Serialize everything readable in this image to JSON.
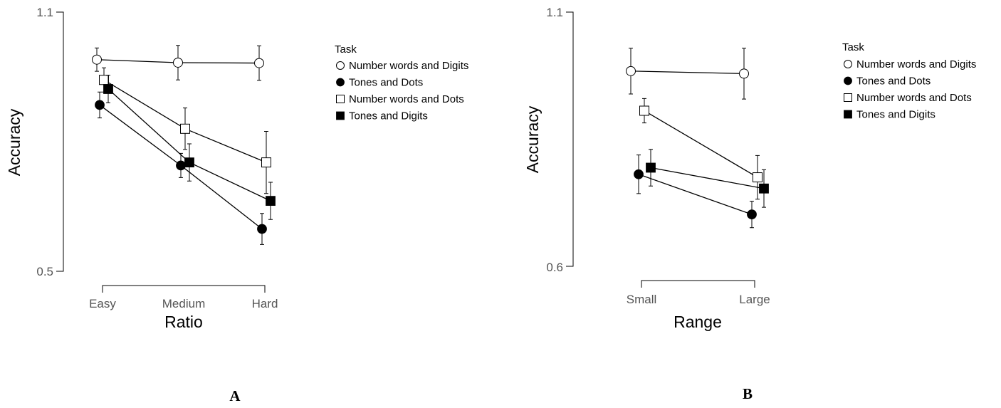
{
  "chart_data": [
    {
      "type": "line",
      "panel_label": "A",
      "xlabel": "Ratio",
      "ylabel": "Accuracy",
      "categories": [
        "Easy",
        "Medium",
        "Hard"
      ],
      "ylim": [
        0.5,
        1.1
      ],
      "y_ticks": [
        "0.5",
        "1.1"
      ],
      "legend": {
        "title": "Task",
        "placement": "right"
      },
      "series": [
        {
          "name": "Number words and Digits",
          "marker": "circle-open",
          "values": [
            0.99,
            0.983,
            0.982
          ],
          "err": [
            0.027,
            0.04,
            0.04
          ]
        },
        {
          "name": "Tones and Dots",
          "marker": "circle-filled",
          "values": [
            0.885,
            0.745,
            0.598
          ],
          "err": [
            0.03,
            0.028,
            0.036
          ]
        },
        {
          "name": "Number words and Dots",
          "marker": "square-open",
          "values": [
            0.943,
            0.83,
            0.752
          ],
          "err": [
            0.028,
            0.048,
            0.072
          ]
        },
        {
          "name": "Tones and Digits",
          "marker": "square-filled",
          "values": [
            0.922,
            0.752,
            0.663
          ],
          "err": [
            0.032,
            0.043,
            0.043
          ]
        }
      ]
    },
    {
      "type": "line",
      "panel_label": "B",
      "xlabel": "Range",
      "ylabel": "Accuracy",
      "categories": [
        "Small",
        "Large"
      ],
      "ylim": [
        0.6,
        1.1
      ],
      "y_ticks": [
        "0.6",
        "1.1"
      ],
      "legend": {
        "title": "Task",
        "placement": "right"
      },
      "series": [
        {
          "name": "Number words and Digits",
          "marker": "circle-open",
          "values": [
            0.984,
            0.979
          ],
          "err": [
            0.045,
            0.05
          ]
        },
        {
          "name": "Tones and Dots",
          "marker": "circle-filled",
          "values": [
            0.781,
            0.702
          ],
          "err": [
            0.038,
            0.026
          ]
        },
        {
          "name": "Number words and Dots",
          "marker": "square-open",
          "values": [
            0.906,
            0.775
          ],
          "err": [
            0.024,
            0.043
          ]
        },
        {
          "name": "Tones and Digits",
          "marker": "square-filled",
          "values": [
            0.794,
            0.753
          ],
          "err": [
            0.036,
            0.037
          ]
        }
      ]
    }
  ]
}
